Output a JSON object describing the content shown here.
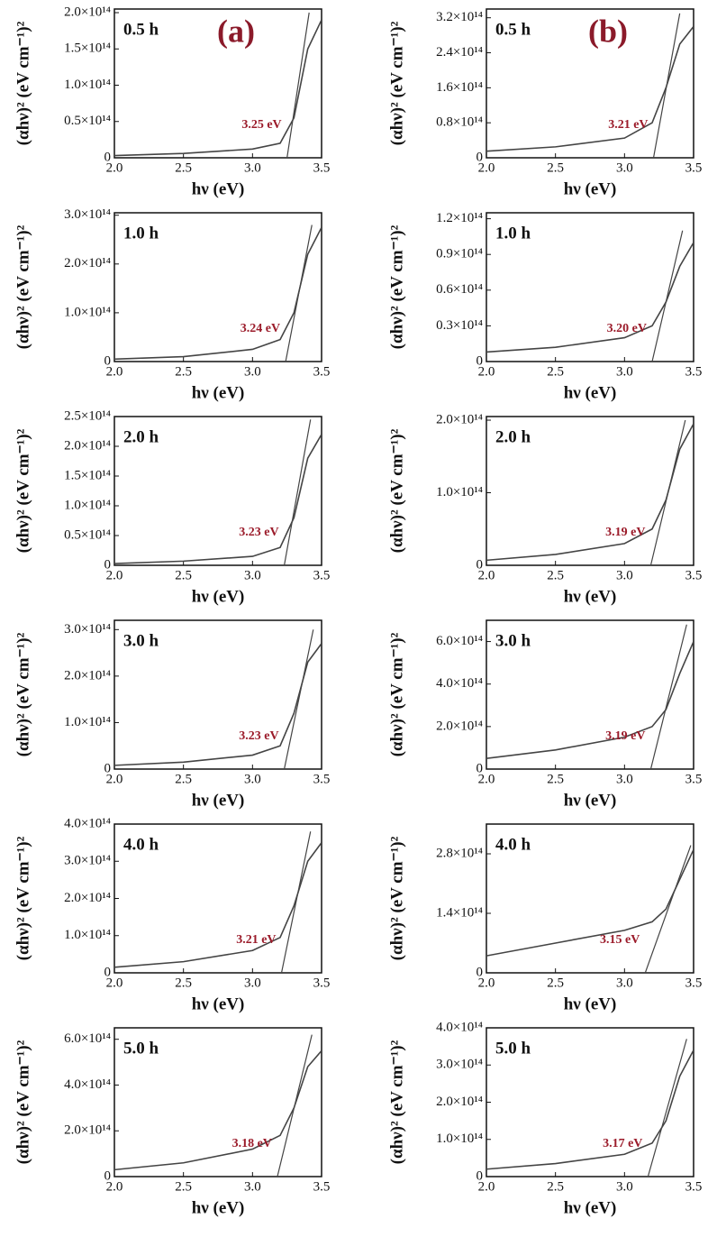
{
  "chart_data": [
    {
      "type": "line",
      "panel_label": "(a)",
      "label": "0.5 h",
      "annotation": "3.25 eV",
      "xlabel": "hν (eV)",
      "ylabel": "(αhν)² (eV cm⁻¹)²",
      "color": "#444444",
      "x": [
        2.0,
        2.5,
        3.0,
        3.2,
        3.3,
        3.4,
        3.5
      ],
      "values": [
        3000000000000.0,
        6000000000000.0,
        12000000000000.0,
        20000000000000.0,
        55000000000000.0,
        150000000000000.0,
        190000000000000.0
      ],
      "fit": {
        "x": [
          3.25,
          3.41
        ],
        "values": [
          0,
          200000000000000.0
        ]
      },
      "xlim": [
        2.0,
        3.5
      ],
      "xticks": [
        {
          "value": 2,
          "label": "2.0"
        },
        2.5,
        {
          "value": 3,
          "label": "3.0"
        },
        3.5
      ],
      "ylim": [
        0,
        205000000000000.0
      ],
      "yticks": [
        0,
        {
          "value": 50000000000000.0,
          "label": "0.5×10¹⁴"
        },
        {
          "value": 100000000000000.0,
          "label": "1.0×10¹⁴"
        },
        {
          "value": 150000000000000.0,
          "label": "1.5×10¹⁴"
        },
        {
          "value": 200000000000000.0,
          "label": "2.0×10¹⁴"
        }
      ]
    },
    {
      "type": "line",
      "label": "1.0 h",
      "annotation": "3.24 eV",
      "xlabel": "hν (eV)",
      "ylabel": "(αhν)² (eV cm⁻¹)²",
      "color": "#444444",
      "x": [
        2.0,
        2.5,
        3.0,
        3.2,
        3.3,
        3.4,
        3.5
      ],
      "values": [
        5000000000000.0,
        10000000000000.0,
        25000000000000.0,
        45000000000000.0,
        100000000000000.0,
        220000000000000.0,
        275000000000000.0
      ],
      "fit": {
        "x": [
          3.24,
          3.43
        ],
        "values": [
          0,
          280000000000000.0
        ]
      },
      "xlim": [
        2.0,
        3.5
      ],
      "xticks": [
        {
          "value": 2,
          "label": "2.0"
        },
        2.5,
        {
          "value": 3,
          "label": "3.0"
        },
        3.5
      ],
      "ylim": [
        0,
        305000000000000.0
      ],
      "yticks": [
        0,
        {
          "value": 100000000000000.0,
          "label": "1.0×10¹⁴"
        },
        {
          "value": 200000000000000.0,
          "label": "2.0×10¹⁴"
        },
        {
          "value": 300000000000000.0,
          "label": "3.0×10¹⁴"
        }
      ]
    },
    {
      "type": "line",
      "label": "2.0 h",
      "annotation": "3.23 eV",
      "xlabel": "hν (eV)",
      "ylabel": "(αhν)² (eV cm⁻¹)²",
      "color": "#444444",
      "x": [
        2.0,
        2.5,
        3.0,
        3.2,
        3.3,
        3.4,
        3.5
      ],
      "values": [
        3000000000000.0,
        7000000000000.0,
        15000000000000.0,
        30000000000000.0,
        80000000000000.0,
        180000000000000.0,
        220000000000000.0
      ],
      "fit": {
        "x": [
          3.23,
          3.42
        ],
        "values": [
          0,
          245000000000000.0
        ]
      },
      "xlim": [
        2.0,
        3.5
      ],
      "xticks": [
        {
          "value": 2,
          "label": "2.0"
        },
        2.5,
        {
          "value": 3,
          "label": "3.0"
        },
        3.5
      ],
      "ylim": [
        0,
        250000000000000.0
      ],
      "yticks": [
        0,
        {
          "value": 50000000000000.0,
          "label": "0.5×10¹⁴"
        },
        {
          "value": 100000000000000.0,
          "label": "1.0×10¹⁴"
        },
        {
          "value": 150000000000000.0,
          "label": "1.5×10¹⁴"
        },
        {
          "value": 200000000000000.0,
          "label": "2.0×10¹⁴"
        },
        {
          "value": 250000000000000.0,
          "label": "2.5×10¹⁴"
        }
      ]
    },
    {
      "type": "line",
      "label": "3.0 h",
      "annotation": "3.23 eV",
      "xlabel": "hν (eV)",
      "ylabel": "(αhν)² (eV cm⁻¹)²",
      "color": "#444444",
      "x": [
        2.0,
        2.5,
        3.0,
        3.2,
        3.3,
        3.4,
        3.5
      ],
      "values": [
        8000000000000.0,
        15000000000000.0,
        30000000000000.0,
        50000000000000.0,
        120000000000000.0,
        230000000000000.0,
        270000000000000.0
      ],
      "fit": {
        "x": [
          3.23,
          3.44
        ],
        "values": [
          0,
          300000000000000.0
        ]
      },
      "xlim": [
        2.0,
        3.5
      ],
      "xticks": [
        {
          "value": 2,
          "label": "2.0"
        },
        2.5,
        {
          "value": 3,
          "label": "3.0"
        },
        3.5
      ],
      "ylim": [
        0,
        320000000000000.0
      ],
      "yticks": [
        0,
        {
          "value": 100000000000000.0,
          "label": "1.0×10¹⁴"
        },
        {
          "value": 200000000000000.0,
          "label": "2.0×10¹⁴"
        },
        {
          "value": 300000000000000.0,
          "label": "3.0×10¹⁴"
        }
      ]
    },
    {
      "type": "line",
      "label": "4.0 h",
      "annotation": "3.21 eV",
      "xlabel": "hν (eV)",
      "ylabel": "(αhν)² (eV cm⁻¹)²",
      "color": "#444444",
      "x": [
        2.0,
        2.5,
        3.0,
        3.2,
        3.3,
        3.4,
        3.5
      ],
      "values": [
        15000000000000.0,
        30000000000000.0,
        60000000000000.0,
        95000000000000.0,
        180000000000000.0,
        300000000000000.0,
        350000000000000.0
      ],
      "fit": {
        "x": [
          3.21,
          3.42
        ],
        "values": [
          0,
          380000000000000.0
        ]
      },
      "xlim": [
        2.0,
        3.5
      ],
      "xticks": [
        {
          "value": 2,
          "label": "2.0"
        },
        2.5,
        {
          "value": 3,
          "label": "3.0"
        },
        3.5
      ],
      "ylim": [
        0,
        400000000000000.0
      ],
      "yticks": [
        0,
        {
          "value": 100000000000000.0,
          "label": "1.0×10¹⁴"
        },
        {
          "value": 200000000000000.0,
          "label": "2.0×10¹⁴"
        },
        {
          "value": 300000000000000.0,
          "label": "3.0×10¹⁴"
        },
        {
          "value": 400000000000000.0,
          "label": "4.0×10¹⁴"
        }
      ]
    },
    {
      "type": "line",
      "label": "5.0 h",
      "annotation": "3.18 eV",
      "xlabel": "hν (eV)",
      "ylabel": "(αhν)² (eV cm⁻¹)²",
      "color": "#444444",
      "x": [
        2.0,
        2.5,
        3.0,
        3.2,
        3.3,
        3.4,
        3.5
      ],
      "values": [
        30000000000000.0,
        60000000000000.0,
        120000000000000.0,
        180000000000000.0,
        300000000000000.0,
        480000000000000.0,
        550000000000000.0
      ],
      "fit": {
        "x": [
          3.18,
          3.43
        ],
        "values": [
          0,
          620000000000000.0
        ]
      },
      "xlim": [
        2.0,
        3.5
      ],
      "xticks": [
        {
          "value": 2,
          "label": "2.0"
        },
        2.5,
        {
          "value": 3,
          "label": "3.0"
        },
        3.5
      ],
      "ylim": [
        0,
        650000000000000.0
      ],
      "yticks": [
        0,
        {
          "value": 200000000000000.0,
          "label": "2.0×10¹⁴"
        },
        {
          "value": 400000000000000.0,
          "label": "4.0×10¹⁴"
        },
        {
          "value": 600000000000000.0,
          "label": "6.0×10¹⁴"
        }
      ]
    },
    {
      "type": "line",
      "panel_label": "(b)",
      "label": "0.5 h",
      "annotation": "3.21 eV",
      "xlabel": "hν (eV)",
      "ylabel": "(αhν)² (eV cm⁻¹)²",
      "color": "#444444",
      "x": [
        2.0,
        2.5,
        3.0,
        3.2,
        3.3,
        3.4,
        3.5
      ],
      "values": [
        15000000000000.0,
        25000000000000.0,
        45000000000000.0,
        80000000000000.0,
        160000000000000.0,
        260000000000000.0,
        300000000000000.0
      ],
      "fit": {
        "x": [
          3.21,
          3.4
        ],
        "values": [
          0,
          330000000000000.0
        ]
      },
      "xlim": [
        2.0,
        3.5
      ],
      "xticks": [
        {
          "value": 2,
          "label": "2.0"
        },
        2.5,
        {
          "value": 3,
          "label": "3.0"
        },
        3.5
      ],
      "ylim": [
        0,
        340000000000000.0
      ],
      "yticks": [
        0,
        {
          "value": 80000000000000.0,
          "label": "0.8×10¹⁴"
        },
        {
          "value": 160000000000000.0,
          "label": "1.6×10¹⁴"
        },
        {
          "value": 240000000000000.0,
          "label": "2.4×10¹⁴"
        },
        {
          "value": 320000000000000.0,
          "label": "3.2×10¹⁴"
        }
      ]
    },
    {
      "type": "line",
      "label": "1.0 h",
      "annotation": "3.20 eV",
      "xlabel": "hν (eV)",
      "ylabel": "(αhν)² (eV cm⁻¹)²",
      "color": "#444444",
      "x": [
        2.0,
        2.5,
        3.0,
        3.2,
        3.3,
        3.4,
        3.5
      ],
      "values": [
        8000000000000.0,
        12000000000000.0,
        20000000000000.0,
        30000000000000.0,
        50000000000000.0,
        80000000000000.0,
        100000000000000.0
      ],
      "fit": {
        "x": [
          3.2,
          3.42
        ],
        "values": [
          0,
          110000000000000.0
        ]
      },
      "xlim": [
        2.0,
        3.5
      ],
      "xticks": [
        {
          "value": 2,
          "label": "2.0"
        },
        2.5,
        {
          "value": 3,
          "label": "3.0"
        },
        3.5
      ],
      "ylim": [
        0,
        125000000000000.0
      ],
      "yticks": [
        0,
        {
          "value": 30000000000000.0,
          "label": "0.3×10¹⁴"
        },
        {
          "value": 60000000000000.0,
          "label": "0.6×10¹⁴"
        },
        {
          "value": 90000000000000.0,
          "label": "0.9×10¹⁴"
        },
        {
          "value": 120000000000000.0,
          "label": "1.2×10¹⁴"
        }
      ]
    },
    {
      "type": "line",
      "label": "2.0 h",
      "annotation": "3.19 eV",
      "xlabel": "hν (eV)",
      "ylabel": "(αhν)² (eV cm⁻¹)²",
      "color": "#444444",
      "x": [
        2.0,
        2.5,
        3.0,
        3.2,
        3.3,
        3.4,
        3.5
      ],
      "values": [
        7000000000000.0,
        15000000000000.0,
        30000000000000.0,
        50000000000000.0,
        90000000000000.0,
        160000000000000.0,
        195000000000000.0
      ],
      "fit": {
        "x": [
          3.19,
          3.44
        ],
        "values": [
          0,
          200000000000000.0
        ]
      },
      "xlim": [
        2.0,
        3.5
      ],
      "xticks": [
        {
          "value": 2,
          "label": "2.0"
        },
        2.5,
        {
          "value": 3,
          "label": "3.0"
        },
        3.5
      ],
      "ylim": [
        0,
        205000000000000.0
      ],
      "yticks": [
        0,
        {
          "value": 100000000000000.0,
          "label": "1.0×10¹⁴"
        },
        {
          "value": 200000000000000.0,
          "label": "2.0×10¹⁴"
        }
      ]
    },
    {
      "type": "line",
      "label": "3.0 h",
      "annotation": "3.19 eV",
      "xlabel": "hν (eV)",
      "ylabel": "(αhν)² (eV cm⁻¹)²",
      "color": "#444444",
      "x": [
        2.0,
        2.5,
        3.0,
        3.2,
        3.3,
        3.4,
        3.5
      ],
      "values": [
        50000000000000.0,
        90000000000000.0,
        150000000000000.0,
        200000000000000.0,
        280000000000000.0,
        450000000000000.0,
        600000000000000.0
      ],
      "fit": {
        "x": [
          3.19,
          3.45
        ],
        "values": [
          0,
          680000000000000.0
        ]
      },
      "xlim": [
        2.0,
        3.5
      ],
      "xticks": [
        {
          "value": 2,
          "label": "2.0"
        },
        2.5,
        {
          "value": 3,
          "label": "3.0"
        },
        3.5
      ],
      "ylim": [
        0,
        700000000000000.0
      ],
      "yticks": [
        0,
        {
          "value": 200000000000000.0,
          "label": "2.0×10¹⁴"
        },
        {
          "value": 400000000000000.0,
          "label": "4.0×10¹⁴"
        },
        {
          "value": 600000000000000.0,
          "label": "6.0×10¹⁴"
        }
      ]
    },
    {
      "type": "line",
      "label": "4.0 h",
      "annotation": "3.15 eV",
      "xlabel": "hν (eV)",
      "ylabel": "(αhν)² (eV cm⁻¹)²",
      "color": "#444444",
      "x": [
        2.0,
        2.5,
        3.0,
        3.2,
        3.3,
        3.4,
        3.5
      ],
      "values": [
        40000000000000.0,
        70000000000000.0,
        100000000000000.0,
        120000000000000.0,
        150000000000000.0,
        220000000000000.0,
        290000000000000.0
      ],
      "fit": {
        "x": [
          3.15,
          3.48
        ],
        "values": [
          0,
          300000000000000.0
        ]
      },
      "xlim": [
        2.0,
        3.5
      ],
      "xticks": [
        {
          "value": 2,
          "label": "2.0"
        },
        2.5,
        {
          "value": 3,
          "label": "3.0"
        },
        3.5
      ],
      "ylim": [
        0,
        350000000000000.0
      ],
      "yticks": [
        0,
        {
          "value": 140000000000000.0,
          "label": "1.4×10¹⁴"
        },
        {
          "value": 280000000000000.0,
          "label": "2.8×10¹⁴"
        }
      ]
    },
    {
      "type": "line",
      "label": "5.0 h",
      "annotation": "3.17 eV",
      "xlabel": "hν (eV)",
      "ylabel": "(αhν)² (eV cm⁻¹)²",
      "color": "#444444",
      "x": [
        2.0,
        2.5,
        3.0,
        3.2,
        3.3,
        3.4,
        3.5
      ],
      "values": [
        20000000000000.0,
        35000000000000.0,
        60000000000000.0,
        90000000000000.0,
        150000000000000.0,
        270000000000000.0,
        340000000000000.0
      ],
      "fit": {
        "x": [
          3.17,
          3.45
        ],
        "values": [
          0,
          370000000000000.0
        ]
      },
      "xlim": [
        2.0,
        3.5
      ],
      "xticks": [
        {
          "value": 2,
          "label": "2.0"
        },
        2.5,
        {
          "value": 3,
          "label": "3.0"
        },
        3.5
      ],
      "ylim": [
        0,
        400000000000000.0
      ],
      "yticks": [
        0,
        {
          "value": 100000000000000.0,
          "label": "1.0×10¹⁴"
        },
        {
          "value": 200000000000000.0,
          "label": "2.0×10¹⁴"
        },
        {
          "value": 300000000000000.0,
          "label": "3.0×10¹⁴"
        },
        {
          "value": 400000000000000.0,
          "label": "4.0×10¹⁴"
        }
      ]
    }
  ]
}
